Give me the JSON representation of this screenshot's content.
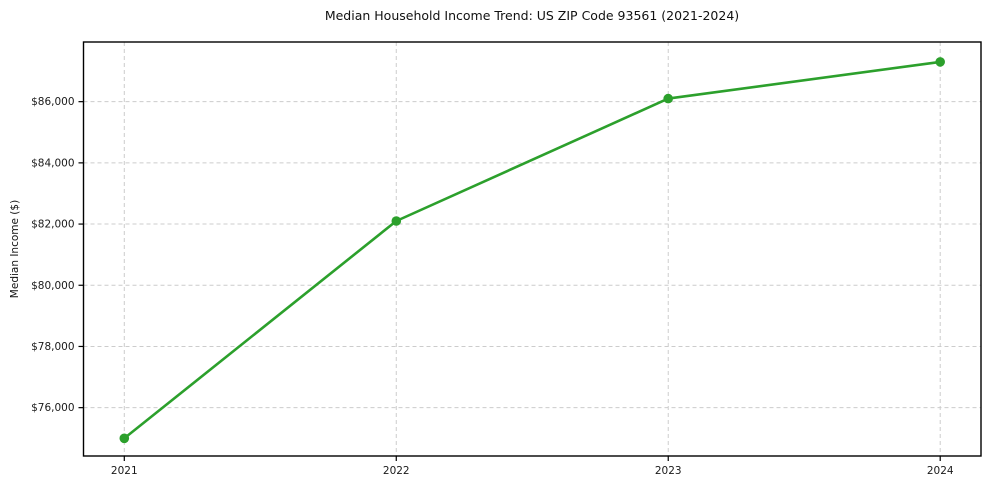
{
  "chart_data": {
    "type": "line",
    "title": "Median Household Income Trend: US ZIP Code 93561 (2021-2024)",
    "xlabel": "",
    "ylabel": "Median Income ($)",
    "x": [
      2021,
      2022,
      2023,
      2024
    ],
    "series": [
      {
        "name": "Median Household Income",
        "values": [
          75000,
          82100,
          86100,
          87300
        ]
      }
    ],
    "xtick_labels": [
      "2021",
      "2022",
      "2023",
      "2024"
    ],
    "ytick_values": [
      76000,
      78000,
      80000,
      82000,
      84000,
      86000
    ],
    "ytick_labels": [
      "$76,000",
      "$78,000",
      "$80,000",
      "$82,000",
      "$84,000",
      "$86,000"
    ],
    "xlim": [
      2020.85,
      2024.15
    ],
    "ylim": [
      74420,
      87950
    ],
    "grid": true,
    "grid_style": "dashed",
    "legend_position": "none",
    "colors": {
      "line": "#2ca02c",
      "marker": "#2ca02c",
      "grid": "#cccccc",
      "axis": "#000000",
      "text": "#1a1a1a",
      "background": "#ffffff"
    }
  }
}
